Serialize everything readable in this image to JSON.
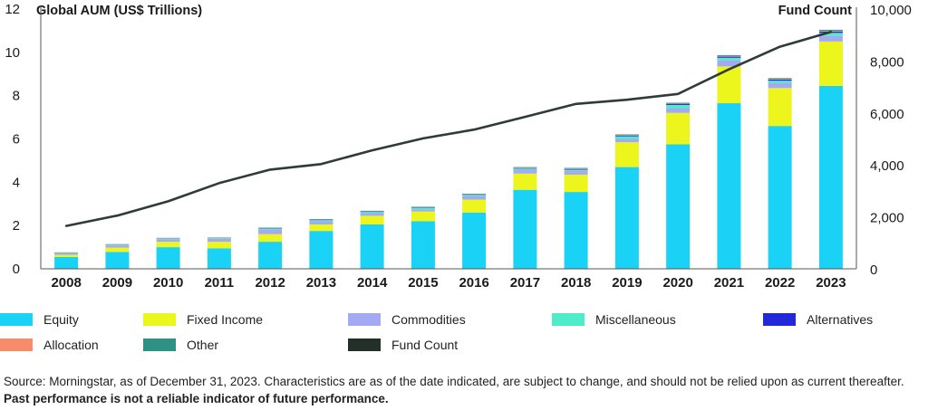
{
  "chart_data": {
    "type": "bar",
    "stacked": true,
    "categories": [
      "2008",
      "2009",
      "2010",
      "2011",
      "2012",
      "2013",
      "2014",
      "2015",
      "2016",
      "2017",
      "2018",
      "2019",
      "2020",
      "2021",
      "2022",
      "2023"
    ],
    "y_left": {
      "title": "Global AUM (US$ Trillions)",
      "range": [
        0,
        12
      ],
      "ticks": [
        "0",
        "2",
        "4",
        "6",
        "8",
        "10",
        "12"
      ]
    },
    "y_right": {
      "title": "Fund Count",
      "range": [
        0,
        10000
      ],
      "ticks": [
        "0",
        "2,000",
        "4,000",
        "6,000",
        "8,000",
        "10,000"
      ]
    },
    "series": [
      {
        "name": "Equity",
        "color": "#19d2f5",
        "values": [
          0.55,
          0.78,
          1.0,
          0.95,
          1.25,
          1.75,
          2.05,
          2.2,
          2.6,
          3.65,
          3.55,
          4.7,
          5.75,
          7.65,
          6.6,
          8.45
        ]
      },
      {
        "name": "Fixed Income",
        "color": "#ecf51c",
        "values": [
          0.1,
          0.2,
          0.25,
          0.3,
          0.35,
          0.3,
          0.4,
          0.45,
          0.6,
          0.75,
          0.8,
          1.15,
          1.45,
          1.7,
          1.75,
          2.05
        ]
      },
      {
        "name": "Commodities",
        "color": "#a3a9f2",
        "values": [
          0.06,
          0.1,
          0.12,
          0.14,
          0.2,
          0.15,
          0.12,
          0.1,
          0.16,
          0.18,
          0.18,
          0.15,
          0.22,
          0.28,
          0.24,
          0.26
        ]
      },
      {
        "name": "Miscellaneous",
        "color": "#4eecc8",
        "values": [
          0.02,
          0.03,
          0.03,
          0.03,
          0.05,
          0.05,
          0.06,
          0.07,
          0.06,
          0.05,
          0.05,
          0.12,
          0.15,
          0.12,
          0.1,
          0.14
        ]
      },
      {
        "name": "Alternatives",
        "color": "#2129d9",
        "values": [
          0.01,
          0.01,
          0.01,
          0.01,
          0.02,
          0.02,
          0.02,
          0.02,
          0.02,
          0.02,
          0.03,
          0.04,
          0.04,
          0.05,
          0.05,
          0.06
        ]
      },
      {
        "name": "Allocation",
        "color": "#f78c6b",
        "values": [
          0.01,
          0.01,
          0.01,
          0.01,
          0.01,
          0.01,
          0.01,
          0.01,
          0.01,
          0.02,
          0.02,
          0.02,
          0.02,
          0.03,
          0.03,
          0.03
        ]
      },
      {
        "name": "Other",
        "color": "#2f9184",
        "values": [
          0.01,
          0.01,
          0.01,
          0.01,
          0.02,
          0.02,
          0.02,
          0.02,
          0.02,
          0.03,
          0.03,
          0.03,
          0.04,
          0.04,
          0.04,
          0.05
        ]
      }
    ],
    "line": {
      "name": "Fund Count",
      "color": "#2e3b36",
      "axis": "right",
      "values": [
        1650,
        2050,
        2600,
        3300,
        3820,
        4030,
        4560,
        5020,
        5360,
        5850,
        6350,
        6510,
        6730,
        7680,
        8550,
        9120
      ]
    }
  },
  "legend": [
    {
      "name": "Equity",
      "color": "#19d2f5"
    },
    {
      "name": "Fixed Income",
      "color": "#ecf51c"
    },
    {
      "name": "Commodities",
      "color": "#a3a9f2"
    },
    {
      "name": "Miscellaneous",
      "color": "#4eecc8"
    },
    {
      "name": "Alternatives",
      "color": "#2129d9"
    },
    {
      "name": "Allocation",
      "color": "#f78c6b"
    },
    {
      "name": "Other",
      "color": "#2f9184"
    },
    {
      "name": "Fund Count",
      "color": "#233029"
    }
  ],
  "footnote": {
    "source_text": "Source: Morningstar, as of December 31, 2023. Characteristics are as of the date indicated, are subject to change, and should not be relied upon as current thereafter.",
    "bold_text": "Past performance is not a reliable indicator of future performance."
  }
}
